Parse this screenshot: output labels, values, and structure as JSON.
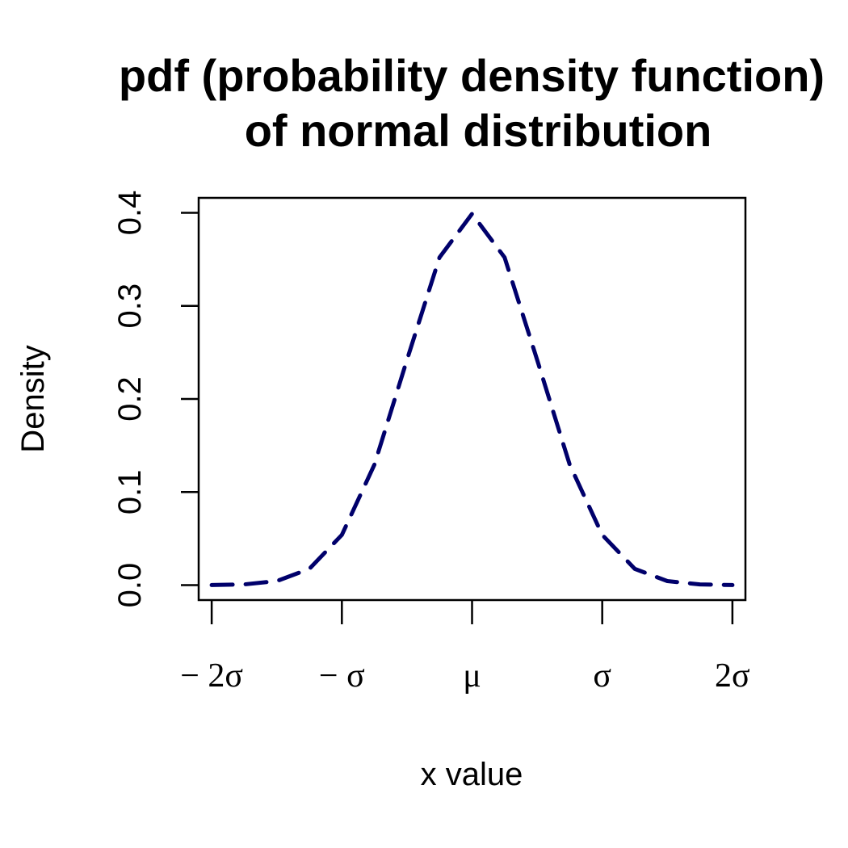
{
  "chart_data": {
    "type": "line",
    "title_lines": [
      "pdf (probability density function)",
      "of normal distribution"
    ],
    "xlabel": "x value",
    "ylabel": "Density",
    "xlim": [
      -2.1,
      2.1
    ],
    "ylim": [
      -0.016,
      0.416
    ],
    "x_ticks": [
      -2,
      -1,
      0,
      1,
      2
    ],
    "x_tick_labels": [
      "− 2σ",
      "− σ",
      "μ",
      "σ",
      "2σ"
    ],
    "y_ticks": [
      0.0,
      0.1,
      0.2,
      0.3,
      0.4
    ],
    "y_tick_labels": [
      "0.0",
      "0.1",
      "0.2",
      "0.3",
      "0.4"
    ],
    "grid": false,
    "series": [
      {
        "color": "#00006b",
        "line_style": "dashed",
        "x": [
          -2.0,
          -1.75,
          -1.5,
          -1.25,
          -1.0,
          -0.75,
          -0.5,
          -0.25,
          0.0,
          0.25,
          0.5,
          0.75,
          1.0,
          1.25,
          1.5,
          1.75,
          2.0
        ],
        "y": [
          0.0001,
          0.0008,
          0.0044,
          0.0175,
          0.054,
          0.1295,
          0.242,
          0.352,
          0.3989,
          0.352,
          0.242,
          0.1295,
          0.054,
          0.0175,
          0.0044,
          0.0008,
          0.0001
        ]
      }
    ]
  }
}
